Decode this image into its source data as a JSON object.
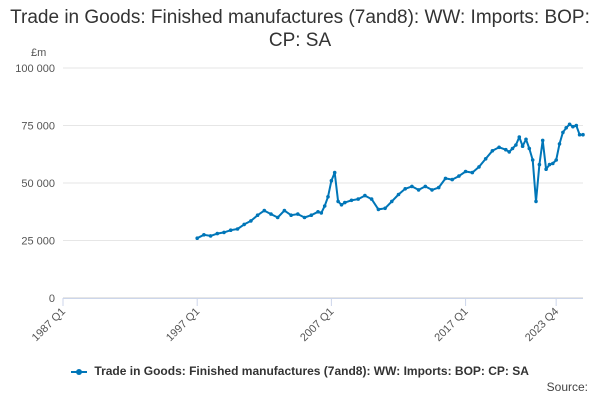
{
  "chart_data": {
    "type": "line",
    "title": "Trade in Goods: Finished manufactures (7and8): WW: Imports: BOP: CP: SA",
    "y_unit": "£m",
    "ylim": [
      0,
      100000
    ],
    "y_ticks": [
      0,
      25000,
      50000,
      75000,
      100000
    ],
    "y_tick_labels": [
      "0",
      "25 000",
      "50 000",
      "75 000",
      "100 000"
    ],
    "x_ticks": [
      "1987 Q1",
      "1997 Q1",
      "2007 Q1",
      "2017 Q1",
      "2023 Q4"
    ],
    "grid": "horizontal",
    "legend_position": "bottom",
    "series": [
      {
        "name": "Trade in Goods: Finished manufactures (7and8): WW: Imports: BOP: CP: SA",
        "color": "#0076b8",
        "points": [
          [
            "1997 Q1",
            26000
          ],
          [
            "1997 Q3",
            27500
          ],
          [
            "1998 Q1",
            27000
          ],
          [
            "1998 Q3",
            28000
          ],
          [
            "1999 Q1",
            28500
          ],
          [
            "1999 Q3",
            29500
          ],
          [
            "2000 Q1",
            30000
          ],
          [
            "2000 Q3",
            32000
          ],
          [
            "2001 Q1",
            33500
          ],
          [
            "2001 Q3",
            36000
          ],
          [
            "2002 Q1",
            38000
          ],
          [
            "2002 Q3",
            36500
          ],
          [
            "2003 Q1",
            35000
          ],
          [
            "2003 Q3",
            38000
          ],
          [
            "2004 Q1",
            36000
          ],
          [
            "2004 Q3",
            36500
          ],
          [
            "2005 Q1",
            35000
          ],
          [
            "2005 Q3",
            36000
          ],
          [
            "2006 Q1",
            37500
          ],
          [
            "2006 Q2",
            37000
          ],
          [
            "2006 Q3",
            40000
          ],
          [
            "2006 Q4",
            44000
          ],
          [
            "2007 Q1",
            51000
          ],
          [
            "2007 Q2",
            54500
          ],
          [
            "2007 Q3",
            42000
          ],
          [
            "2007 Q4",
            40500
          ],
          [
            "2008 Q1",
            41500
          ],
          [
            "2008 Q3",
            42500
          ],
          [
            "2009 Q1",
            43000
          ],
          [
            "2009 Q3",
            44500
          ],
          [
            "2010 Q1",
            43000
          ],
          [
            "2010 Q3",
            38500
          ],
          [
            "2011 Q1",
            39000
          ],
          [
            "2011 Q3",
            42000
          ],
          [
            "2012 Q1",
            45000
          ],
          [
            "2012 Q3",
            47500
          ],
          [
            "2013 Q1",
            48500
          ],
          [
            "2013 Q3",
            47000
          ],
          [
            "2014 Q1",
            48500
          ],
          [
            "2014 Q3",
            47000
          ],
          [
            "2015 Q1",
            48000
          ],
          [
            "2015 Q3",
            52000
          ],
          [
            "2016 Q1",
            51500
          ],
          [
            "2016 Q3",
            53000
          ],
          [
            "2017 Q1",
            55000
          ],
          [
            "2017 Q3",
            54500
          ],
          [
            "2018 Q1",
            57000
          ],
          [
            "2018 Q3",
            60500
          ],
          [
            "2019 Q1",
            64000
          ],
          [
            "2019 Q3",
            65500
          ],
          [
            "2020 Q1",
            64500
          ],
          [
            "2020 Q2",
            63500
          ],
          [
            "2020 Q3",
            65000
          ],
          [
            "2020 Q4",
            66500
          ],
          [
            "2021 Q1",
            70000
          ],
          [
            "2021 Q2",
            66000
          ],
          [
            "2021 Q3",
            69000
          ],
          [
            "2021 Q4",
            65000
          ],
          [
            "2022 Q1",
            60000
          ],
          [
            "2022 Q2",
            42000
          ],
          [
            "2022 Q3",
            58000
          ],
          [
            "2022 Q4",
            68500
          ],
          [
            "2023 Q1",
            56000
          ],
          [
            "2023 Q2",
            58000
          ],
          [
            "2023 Q3",
            58500
          ],
          [
            "2023 Q4",
            60000
          ],
          [
            "2024 Q1",
            67000
          ],
          [
            "2024 Q2",
            72000
          ],
          [
            "2024 Q3",
            74000
          ],
          [
            "2024 Q4",
            75500
          ],
          [
            "2025 Q1",
            74500
          ],
          [
            "2025 Q2",
            75000
          ],
          [
            "2025 Q3",
            71000
          ],
          [
            "2025 Q4",
            71000
          ]
        ]
      }
    ]
  },
  "legend": {
    "label": "Trade in Goods: Finished manufactures (7and8): WW: Imports: BOP: CP: SA"
  },
  "source_label": "Source:"
}
